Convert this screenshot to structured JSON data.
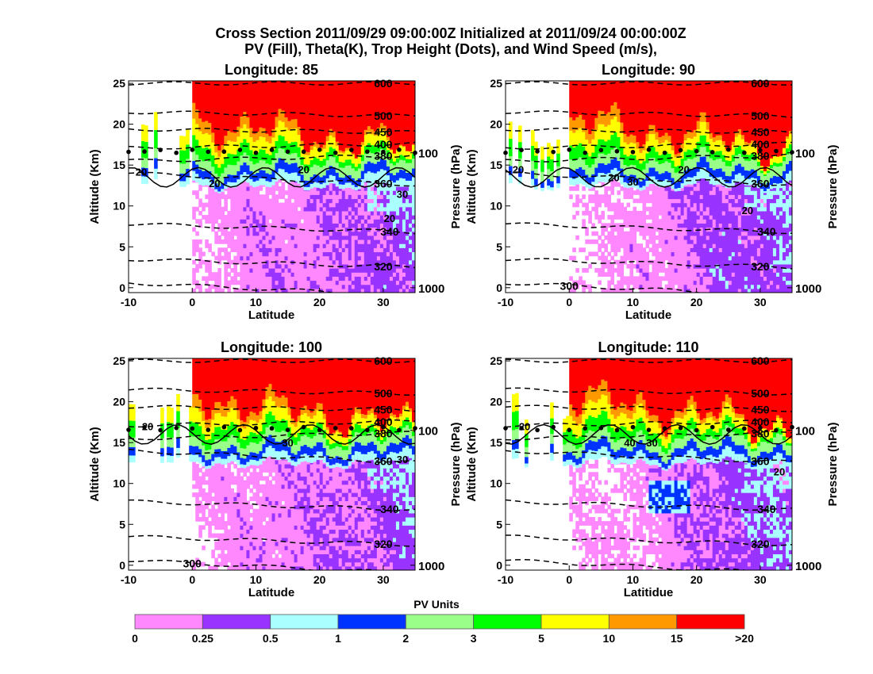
{
  "chart_data": {
    "type": "heatmap",
    "title_line1": "Cross Section 2011/09/29 09:00:00Z Initialized at 2011/09/24 00:00:00Z",
    "title_line2": "PV (Fill), Theta(K), Trop Height (Dots), and Wind Speed (m/s),",
    "xlim": [
      -10,
      35
    ],
    "ylim": [
      -0.6,
      25.3
    ],
    "x_ticks": [
      "-10",
      "0",
      "10",
      "20",
      "30"
    ],
    "x_tick_values": [
      -10,
      0,
      10,
      20,
      30
    ],
    "y_ticks": [
      "0",
      "5",
      "10",
      "15",
      "20",
      "25"
    ],
    "y_tick_values": [
      0,
      5,
      10,
      15,
      20,
      25
    ],
    "ylabel": "Altitude (Km)",
    "y2label": "Pressure (hPa)",
    "y2_ticks": [
      {
        "label": "100",
        "alt": 16.5
      },
      {
        "label": "1000",
        "alt": 0
      }
    ],
    "trop_height_km": 16.7,
    "theta_contours": [
      {
        "label": "300",
        "alt_start": 0.6,
        "alt_end": -1
      },
      {
        "label": "320",
        "alt_start": 3.5,
        "alt_end": 2.5
      },
      {
        "label": "340",
        "alt_start": 7.8,
        "alt_end": 6.8
      },
      {
        "label": "360",
        "alt_start": 14.0,
        "alt_end": 12.6
      },
      {
        "label": "380",
        "alt_start": 15.5,
        "alt_end": 16.2
      },
      {
        "label": "400",
        "alt_start": 17.1,
        "alt_end": 17.6
      },
      {
        "label": "450",
        "alt_start": 19.4,
        "alt_end": 19.0
      },
      {
        "label": "500",
        "alt_start": 21.5,
        "alt_end": 21.0
      },
      {
        "label": "600",
        "alt_start": 25.0,
        "alt_end": 25.0
      }
    ],
    "panels": [
      {
        "title": "Longitude:   85",
        "xlabel": "Latitude",
        "seed": 1,
        "wind_labels": [
          {
            "text": "20",
            "lat": -8,
            "alt": 14.2
          },
          {
            "text": "20",
            "lat": 3.5,
            "alt": 12.8
          },
          {
            "text": "20",
            "lat": 17.5,
            "alt": 14.5
          },
          {
            "text": "30",
            "lat": 33,
            "alt": 11.5
          },
          {
            "text": "20",
            "lat": 31,
            "alt": 8.5
          }
        ]
      },
      {
        "title": "Longitude:   90",
        "xlabel": "Latitude",
        "seed": 2,
        "wind_labels": [
          {
            "text": "20",
            "lat": -8,
            "alt": 14.5
          },
          {
            "text": "20",
            "lat": 7,
            "alt": 13.5
          },
          {
            "text": "30",
            "lat": 10,
            "alt": 13
          },
          {
            "text": "20",
            "lat": 18,
            "alt": 14.5
          },
          {
            "text": "20",
            "lat": 28,
            "alt": 9.5
          }
        ]
      },
      {
        "title": "Longitude:  100",
        "xlabel": "Latitude",
        "seed": 3,
        "wind_labels": [
          {
            "text": "20",
            "lat": -7,
            "alt": 17
          },
          {
            "text": "30",
            "lat": 15,
            "alt": 15
          },
          {
            "text": "30",
            "lat": 33,
            "alt": 13
          }
        ]
      },
      {
        "title": "Longitude:  110",
        "xlabel": "Latitidue",
        "seed": 4,
        "wind_labels": [
          {
            "text": "20",
            "lat": -7,
            "alt": 17
          },
          {
            "text": "40",
            "lat": 9.5,
            "alt": 15
          },
          {
            "text": "30",
            "lat": 13,
            "alt": 15
          },
          {
            "text": "20",
            "lat": 33,
            "alt": 11.5
          }
        ]
      }
    ],
    "colorbar": {
      "title": "PV Units",
      "ticks": [
        "0",
        "0.25",
        "0.5",
        "1",
        "2",
        "3",
        "5",
        "10",
        "15",
        ">20"
      ],
      "colors": [
        "#ff88ff",
        "#9933ff",
        "#aaffff",
        "#0033ff",
        "#99ff88",
        "#00ff00",
        "#ffff00",
        "#ff9900",
        "#ff0000"
      ]
    }
  }
}
